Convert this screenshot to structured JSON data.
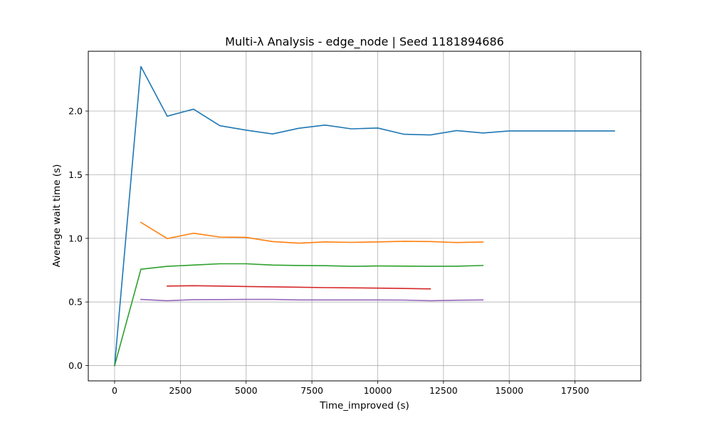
{
  "chart_data": {
    "type": "line",
    "title": "Multi-λ Analysis - edge_node | Seed 1181894686",
    "xlabel": "Time_improved (s)",
    "ylabel": "Average wait time (s)",
    "xlim": [
      -1000,
      20000
    ],
    "ylim": [
      -0.12,
      2.47
    ],
    "xticks": [
      0,
      2500,
      5000,
      7500,
      10000,
      12500,
      15000,
      17500
    ],
    "xtick_labels": [
      "0",
      "2500",
      "5000",
      "7500",
      "10000",
      "12500",
      "15000",
      "17500"
    ],
    "yticks": [
      0.0,
      0.5,
      1.0,
      1.5,
      2.0
    ],
    "ytick_labels": [
      "0.0",
      "0.5",
      "1.0",
      "1.5",
      "2.0"
    ],
    "grid": true,
    "legend": false,
    "series": [
      {
        "color": "#1f77b4",
        "x": [
          0,
          1000,
          2000,
          3000,
          4000,
          5000,
          6000,
          7000,
          8000,
          9000,
          10000,
          11000,
          12000,
          13000,
          14000,
          15000,
          16000,
          17000,
          18000,
          19000
        ],
        "y": [
          0.0,
          2.35,
          1.96,
          2.015,
          1.885,
          1.85,
          1.82,
          1.865,
          1.89,
          1.86,
          1.867,
          1.818,
          1.812,
          1.847,
          1.828,
          1.844,
          1.844,
          1.844,
          1.844,
          1.844
        ]
      },
      {
        "color": "#ff7f0e",
        "x": [
          1000,
          2000,
          3000,
          4000,
          5000,
          6000,
          7000,
          8000,
          9000,
          10000,
          11000,
          12000,
          13000,
          14000
        ],
        "y": [
          1.125,
          0.998,
          1.04,
          1.01,
          1.008,
          0.975,
          0.962,
          0.972,
          0.968,
          0.972,
          0.977,
          0.975,
          0.967,
          0.971
        ]
      },
      {
        "color": "#2ca02c",
        "x": [
          0,
          1000,
          2000,
          3000,
          4000,
          5000,
          6000,
          7000,
          8000,
          9000,
          10000,
          11000,
          12000,
          13000,
          14000
        ],
        "y": [
          0.0,
          0.757,
          0.78,
          0.79,
          0.8,
          0.8,
          0.79,
          0.787,
          0.785,
          0.78,
          0.783,
          0.782,
          0.78,
          0.781,
          0.787
        ]
      },
      {
        "color": "#d62728",
        "x": [
          2000,
          3000,
          4000,
          5000,
          6000,
          7000,
          8000,
          9000,
          10000,
          11000,
          12000
        ],
        "y": [
          0.625,
          0.628,
          0.625,
          0.622,
          0.619,
          0.616,
          0.613,
          0.611,
          0.609,
          0.606,
          0.603
        ]
      },
      {
        "color": "#9467bd",
        "x": [
          1000,
          2000,
          3000,
          4000,
          5000,
          6000,
          7000,
          8000,
          9000,
          10000,
          11000,
          12000,
          13000,
          14000
        ],
        "y": [
          0.52,
          0.51,
          0.518,
          0.519,
          0.52,
          0.52,
          0.516,
          0.516,
          0.516,
          0.516,
          0.515,
          0.51,
          0.514,
          0.516
        ]
      }
    ]
  }
}
